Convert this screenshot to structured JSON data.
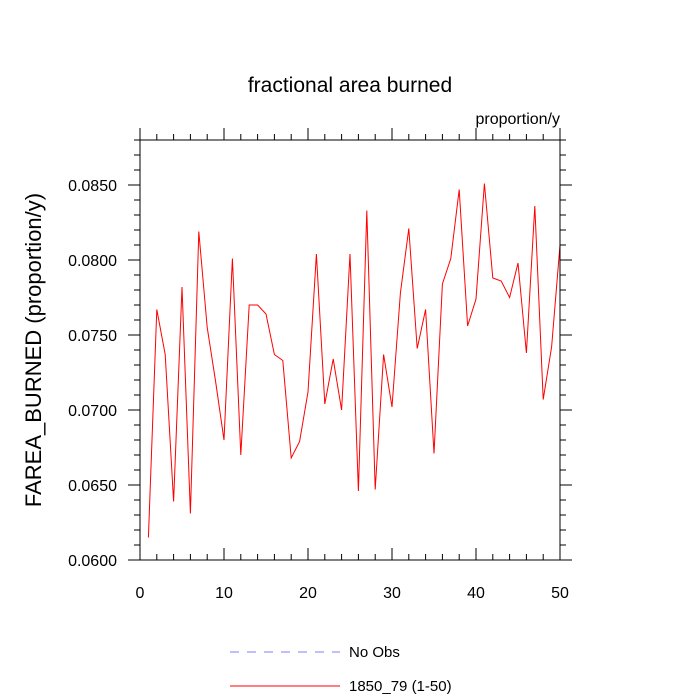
{
  "chart_data": {
    "type": "line",
    "title": "fractional area burned",
    "units_label": "proportion/y",
    "xlabel": "",
    "ylabel": "FAREA_BURNED  (proportion/y)",
    "xlim": [
      0,
      50
    ],
    "ylim": [
      0.06,
      0.088
    ],
    "xticks": [
      0,
      10,
      20,
      30,
      40,
      50
    ],
    "xtick_labels": [
      "0",
      "10",
      "20",
      "30",
      "40",
      "50"
    ],
    "yticks": [
      0.06,
      0.065,
      0.07,
      0.075,
      0.08,
      0.085
    ],
    "ytick_labels": [
      "0.0600",
      "0.0650",
      "0.0700",
      "0.0750",
      "0.0800",
      "0.0850"
    ],
    "series": [
      {
        "name": "No Obs",
        "color": "#7f7fff",
        "style": "dashed",
        "x": [],
        "values": []
      },
      {
        "name": "1850_79 (1-50)",
        "color": "#ff0000",
        "style": "solid",
        "x": [
          1,
          2,
          3,
          4,
          5,
          6,
          7,
          8,
          9,
          10,
          11,
          12,
          13,
          14,
          15,
          16,
          17,
          18,
          19,
          20,
          21,
          22,
          23,
          24,
          25,
          26,
          27,
          28,
          29,
          30,
          31,
          32,
          33,
          34,
          35,
          36,
          37,
          38,
          39,
          40,
          41,
          42,
          43,
          44,
          45,
          46,
          47,
          48,
          49,
          50
        ],
        "values": [
          0.0615,
          0.0767,
          0.0737,
          0.0639,
          0.0782,
          0.0631,
          0.0819,
          0.0755,
          0.0719,
          0.068,
          0.0801,
          0.067,
          0.077,
          0.077,
          0.0764,
          0.0737,
          0.0733,
          0.0668,
          0.0679,
          0.0712,
          0.0804,
          0.0704,
          0.0734,
          0.07,
          0.0804,
          0.0646,
          0.0833,
          0.0647,
          0.0737,
          0.0702,
          0.0778,
          0.0821,
          0.0741,
          0.0767,
          0.0671,
          0.0784,
          0.0801,
          0.0847,
          0.0756,
          0.0774,
          0.0851,
          0.0788,
          0.0786,
          0.0775,
          0.0798,
          0.0738,
          0.0836,
          0.0707,
          0.0742,
          0.081
        ]
      }
    ]
  }
}
